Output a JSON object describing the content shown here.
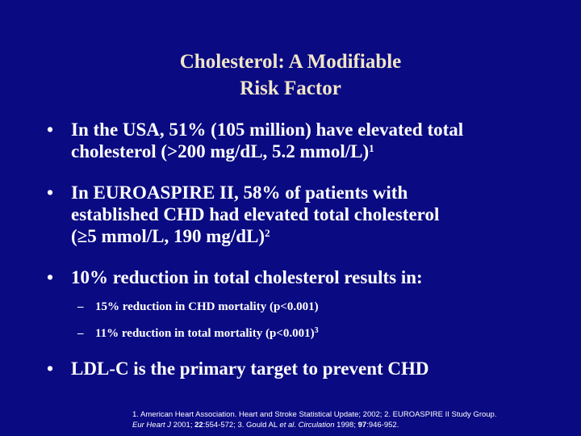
{
  "slide": {
    "background_color": "#0a0a82",
    "title_color": "#f0e6c8",
    "title_line1": "Cholesterol: A Modifiable",
    "title_line2": "Risk Factor",
    "bullet_symbol": "•",
    "dash_symbol": "–",
    "bullets": [
      {
        "line1": "In the USA, 51% (105 million) have elevated total",
        "line2": "cholesterol (>200 mg/dL, 5.2 mmol/L)",
        "line2_sup": "1"
      },
      {
        "line1": "In EUROASPIRE II, 58% of patients with",
        "line2": "established CHD had elevated total cholesterol",
        "line3": "(≥5 mmol/L, 190 mg/dL)",
        "line3_sup": "2"
      },
      {
        "line1": "10% reduction in total cholesterol results in:"
      },
      {
        "line1": "LDL-C is the primary target to prevent CHD"
      }
    ],
    "sub_bullets": [
      {
        "text": "15% reduction in CHD mortality (p<0.001)"
      },
      {
        "text": "11% reduction in total mortality (p<0.001)",
        "sup": "3"
      }
    ],
    "references": {
      "r1": "1. American Heart Association. Heart and Stroke Statistical Update; 2002; 2. EUROASPIRE II Study Group.",
      "r2_journal": "Eur Heart J",
      "r2_year": " 2001; ",
      "r2_vol": "22",
      "r2_pages": ":554-572; 3. Gould AL ",
      "r2_etal": "et al",
      "r2_dot": ". ",
      "r2_journal2": "Circulation",
      "r2_year2": " 1998; ",
      "r2_vol2": "97",
      "r2_pages2": ":946-952."
    }
  }
}
